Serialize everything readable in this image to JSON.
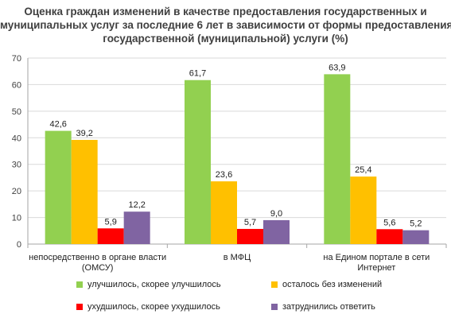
{
  "title_lines": [
    "Оценка граждан изменений в качестве предоставления государственных и",
    "муниципальных услуг за последние 6 лет в зависимости от формы предоставления",
    "государственной (муниципальной) услуги (%)"
  ],
  "chart_data": {
    "type": "bar",
    "title": "Оценка граждан изменений в качестве предоставления государственных и муниципальных услуг за последние 6 лет в зависимости от формы предоставления государственной (муниципальной) услуги (%)",
    "categories": [
      [
        "непосредственно в органе власти",
        "(ОМСУ)"
      ],
      [
        "в МФЦ"
      ],
      [
        "на Едином портале в сети",
        "Интернет"
      ]
    ],
    "series": [
      {
        "name": "улучшилось, скорее улучшилось",
        "color": "#92d050",
        "values": [
          42.6,
          61.7,
          63.9
        ]
      },
      {
        "name": "осталось без изменений",
        "color": "#ffc000",
        "values": [
          39.2,
          23.6,
          25.4
        ]
      },
      {
        "name": "ухудшилось, скорее ухудшилось",
        "color": "#ff0000",
        "values": [
          5.9,
          5.7,
          5.6
        ]
      },
      {
        "name": "затруднились ответить",
        "color": "#8064a2",
        "values": [
          12.2,
          9.0,
          5.2
        ]
      }
    ],
    "value_labels": [
      [
        "42,6",
        "61,7",
        "63,9"
      ],
      [
        "39,2",
        "23,6",
        "25,4"
      ],
      [
        "5,9",
        "5,7",
        "5,6"
      ],
      [
        "12,2",
        "9,0",
        "5,2"
      ]
    ],
    "ylim": [
      0,
      70
    ],
    "yticks": [
      0,
      10,
      20,
      30,
      40,
      50,
      60,
      70
    ],
    "grid": true,
    "legend": "bottom"
  }
}
